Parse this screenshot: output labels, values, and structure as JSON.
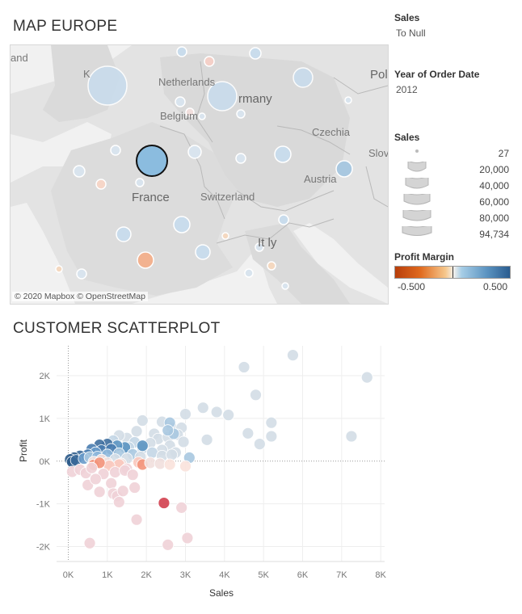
{
  "map_title": "MAP EUROPE",
  "scatter_title": "CUSTOMER SCATTERPLOT",
  "map": {
    "attribution": "© 2020 Mapbox © OpenStreetMap",
    "labels": {
      "england": "and",
      "uk": "K",
      "netherlands": "Netherlands",
      "belgium": "Belgium",
      "germany": "rmany",
      "czechia": "Czechia",
      "slovakia": "Slova",
      "poland": "Pol",
      "france": "France",
      "switzerland": "Switzerland",
      "austria": "Austria",
      "italy": "It ly"
    }
  },
  "filters": {
    "sales_title": "Sales",
    "sales_value": "To Null",
    "year_title": "Year of Order Date",
    "year_value": "2012"
  },
  "size_legend": {
    "title": "Sales",
    "items": [
      "27",
      "20,000",
      "40,000",
      "60,000",
      "80,000",
      "94,734"
    ]
  },
  "color_legend": {
    "title": "Profit Margin",
    "min": "-0.500",
    "max": "0.500",
    "colors": [
      "#b83e0b",
      "#f4f1ec",
      "#2a5c8f"
    ]
  },
  "chart_data": {
    "type": "scatter",
    "xlabel": "Sales",
    "ylabel": "Profit",
    "xlim": [
      -300,
      8100
    ],
    "ylim": [
      -2350,
      2700
    ],
    "xticks": [
      "0K",
      "1K",
      "2K",
      "3K",
      "4K",
      "5K",
      "6K",
      "7K",
      "8K"
    ],
    "yticks": [
      "2K",
      "1K",
      "0K",
      "-1K",
      "-2K"
    ],
    "xtick_values": [
      0,
      1000,
      2000,
      3000,
      4000,
      5000,
      6000,
      7000,
      8000
    ],
    "ytick_values": [
      2000,
      1000,
      0,
      -1000,
      -2000
    ],
    "points": [
      [
        5750,
        2480,
        "#d3dde6"
      ],
      [
        4500,
        2200,
        "#d3dde6"
      ],
      [
        7650,
        1960,
        "#d3dde6"
      ],
      [
        4800,
        1550,
        "#d3dde6"
      ],
      [
        3450,
        1250,
        "#d3dde6"
      ],
      [
        3800,
        1150,
        "#d3dde6"
      ],
      [
        4100,
        1080,
        "#d3dde6"
      ],
      [
        3000,
        1100,
        "#d3dde6"
      ],
      [
        5200,
        900,
        "#d3dde6"
      ],
      [
        4600,
        650,
        "#d3dde6"
      ],
      [
        5200,
        580,
        "#d3dde6"
      ],
      [
        7250,
        580,
        "#d3dde6"
      ],
      [
        4900,
        400,
        "#d3dde6"
      ],
      [
        3550,
        500,
        "#d3dde6"
      ],
      [
        1900,
        950,
        "#d3dde6"
      ],
      [
        2400,
        920,
        "#d3dde6"
      ],
      [
        2650,
        780,
        "#d3dde6"
      ],
      [
        2900,
        780,
        "#d3dde6"
      ],
      [
        2200,
        640,
        "#d3dde6"
      ],
      [
        2800,
        620,
        "#d3dde6"
      ],
      [
        2300,
        520,
        "#d3dde6"
      ],
      [
        2550,
        560,
        "#d3dde6"
      ],
      [
        2950,
        450,
        "#d3dde6"
      ],
      [
        2100,
        420,
        "#d3dde6"
      ],
      [
        2600,
        360,
        "#d3dde6"
      ],
      [
        2400,
        260,
        "#d3dde6"
      ],
      [
        2750,
        200,
        "#d3dde6"
      ],
      [
        1750,
        700,
        "#d3dde6"
      ],
      [
        1500,
        540,
        "#d3dde6"
      ],
      [
        1300,
        600,
        "#d3dde6"
      ],
      [
        1700,
        440,
        "#c3d6e5"
      ],
      [
        1550,
        320,
        "#c3d6e5"
      ],
      [
        1150,
        480,
        "#c3d6e5"
      ],
      [
        1900,
        300,
        "#c3d6e5"
      ],
      [
        2150,
        200,
        "#c3d6e5"
      ],
      [
        1200,
        260,
        "#c3d6e5"
      ],
      [
        2400,
        120,
        "#d3dde6"
      ],
      [
        3100,
        80,
        "#a9c8e0"
      ],
      [
        2650,
        150,
        "#d3dde6"
      ],
      [
        2600,
        900,
        "#a9c8e0"
      ],
      [
        2700,
        640,
        "#a9c8e0"
      ],
      [
        2550,
        720,
        "#a9c8e0"
      ],
      [
        1900,
        360,
        "#5b93c1"
      ],
      [
        1450,
        320,
        "#5b93c1"
      ],
      [
        1250,
        360,
        "#5b93c1"
      ],
      [
        1000,
        400,
        "#3f6f9f"
      ],
      [
        800,
        380,
        "#3f6f9f"
      ],
      [
        600,
        280,
        "#4a7db0"
      ],
      [
        850,
        250,
        "#4a7db0"
      ],
      [
        1100,
        280,
        "#4a7db0"
      ],
      [
        700,
        200,
        "#6a9ccb"
      ],
      [
        500,
        150,
        "#4a7db0"
      ],
      [
        300,
        120,
        "#3a6898"
      ],
      [
        150,
        80,
        "#2e5b8a"
      ],
      [
        50,
        40,
        "#2e5b8a"
      ],
      [
        100,
        -20,
        "#2e5b8a"
      ],
      [
        200,
        20,
        "#3a6898"
      ],
      [
        400,
        60,
        "#6a9ccb"
      ],
      [
        550,
        90,
        "#a9c8e0"
      ],
      [
        750,
        100,
        "#8fb8db"
      ],
      [
        1000,
        150,
        "#8fb8db"
      ],
      [
        1300,
        180,
        "#a9c8e0"
      ],
      [
        1650,
        160,
        "#a9c8e0"
      ],
      [
        1850,
        100,
        "#d3dde6"
      ],
      [
        1500,
        60,
        "#d3dde6"
      ],
      [
        1200,
        40,
        "#d3dde6"
      ],
      [
        850,
        30,
        "#f1dfdd"
      ],
      [
        650,
        -20,
        "#f1dfdd"
      ],
      [
        1000,
        -40,
        "#f1dfdd"
      ],
      [
        1350,
        -60,
        "#f1dfdd"
      ],
      [
        1800,
        -30,
        "#f9c8bd"
      ],
      [
        1900,
        -80,
        "#f3947a"
      ],
      [
        1300,
        -80,
        "#f9c8bd"
      ],
      [
        1050,
        -110,
        "#f9c8bd"
      ],
      [
        650,
        -90,
        "#f3947a"
      ],
      [
        800,
        -40,
        "#f3947a"
      ],
      [
        2100,
        -40,
        "#f1dfdd"
      ],
      [
        2350,
        -60,
        "#f1dfdd"
      ],
      [
        3000,
        -120,
        "#f9e2dc"
      ],
      [
        2600,
        -80,
        "#f9e2dc"
      ],
      [
        1500,
        -180,
        "#efd2d7"
      ],
      [
        100,
        -250,
        "#efd2d7"
      ],
      [
        300,
        -200,
        "#efd2d7"
      ],
      [
        450,
        -280,
        "#efd2d7"
      ],
      [
        600,
        -160,
        "#efd2d7"
      ],
      [
        900,
        -300,
        "#efd2d7"
      ],
      [
        1200,
        -260,
        "#efd2d7"
      ],
      [
        1450,
        -220,
        "#efd2d7"
      ],
      [
        1650,
        -320,
        "#efd2d7"
      ],
      [
        500,
        -560,
        "#efd2d7"
      ],
      [
        700,
        -420,
        "#efd2d7"
      ],
      [
        800,
        -720,
        "#efd2d7"
      ],
      [
        1100,
        -520,
        "#efd2d7"
      ],
      [
        1150,
        -760,
        "#efd2d7"
      ],
      [
        1250,
        -820,
        "#efd2d7"
      ],
      [
        1300,
        -960,
        "#efd2d7"
      ],
      [
        1400,
        -700,
        "#efd2d7"
      ],
      [
        1700,
        -620,
        "#efd2d7"
      ],
      [
        1750,
        -1370,
        "#efd2d7"
      ],
      [
        2450,
        -980,
        "#d23f4e"
      ],
      [
        2900,
        -1090,
        "#efd2d7"
      ],
      [
        3050,
        -1800,
        "#efd2d7"
      ],
      [
        2550,
        -1960,
        "#efd2d7"
      ],
      [
        550,
        -1920,
        "#efd2d7"
      ]
    ]
  }
}
